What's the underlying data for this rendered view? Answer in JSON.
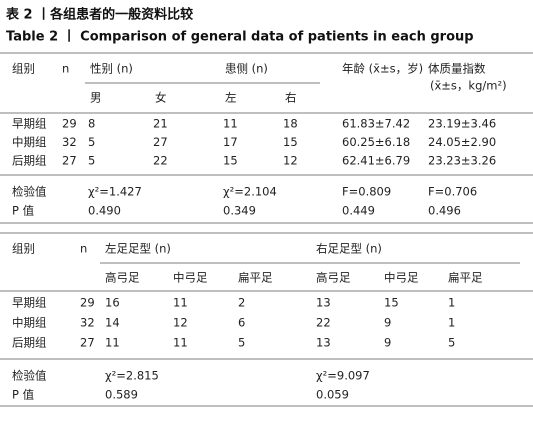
{
  "header": {
    "title_cn": "表 2 丨各组患者的一般资料比较",
    "title_en": "Table 2 丨 Comparison of general data of patients in each group"
  },
  "table1": {
    "header": [
      "组别",
      "n",
      "性别 (n)",
      "患侧 (n)",
      "年龄 (x̄±s，岁)",
      [
        "体质量指数",
        "(x̄±s，kg/m²)"
      ]
    ],
    "subheader": [
      "男",
      "女",
      "左",
      "右"
    ],
    "rows": [
      [
        "早期组",
        "29",
        "8",
        "21",
        "11",
        "18",
        "61.83±7.42",
        "23.19±3.46"
      ],
      [
        "中期组",
        "32",
        "5",
        "27",
        "17",
        "15",
        "60.25±6.18",
        "24.05±2.90"
      ],
      [
        "后期组",
        "27",
        "5",
        "22",
        "15",
        "12",
        "62.41±6.79",
        "23.23±3.26"
      ]
    ],
    "stats": [
      [
        "检验值",
        "χ²=1.427",
        "χ²=2.104",
        "F=0.809",
        "F=0.706"
      ],
      [
        "P 值",
        "0.490",
        "0.349",
        "0.449",
        "0.496"
      ]
    ]
  },
  "table2": {
    "header": [
      "组别",
      "n",
      "左足足型 (n)",
      "右足足型 (n)"
    ],
    "subheader": [
      "高弓足",
      "中弓足",
      "扁平足",
      "高弓足",
      "中弓足",
      "扁平足"
    ],
    "rows": [
      [
        "早期组",
        "29",
        "16",
        "11",
        "2",
        "13",
        "15",
        "1"
      ],
      [
        "中期组",
        "32",
        "14",
        "12",
        "6",
        "22",
        "9",
        "1"
      ],
      [
        "后期组",
        "27",
        "11",
        "11",
        "5",
        "13",
        "9",
        "5"
      ]
    ],
    "stats": [
      [
        "检验值",
        "χ²=2.815",
        "χ²=9.097"
      ],
      [
        "P 值",
        "0.589",
        "0.059"
      ]
    ]
  }
}
